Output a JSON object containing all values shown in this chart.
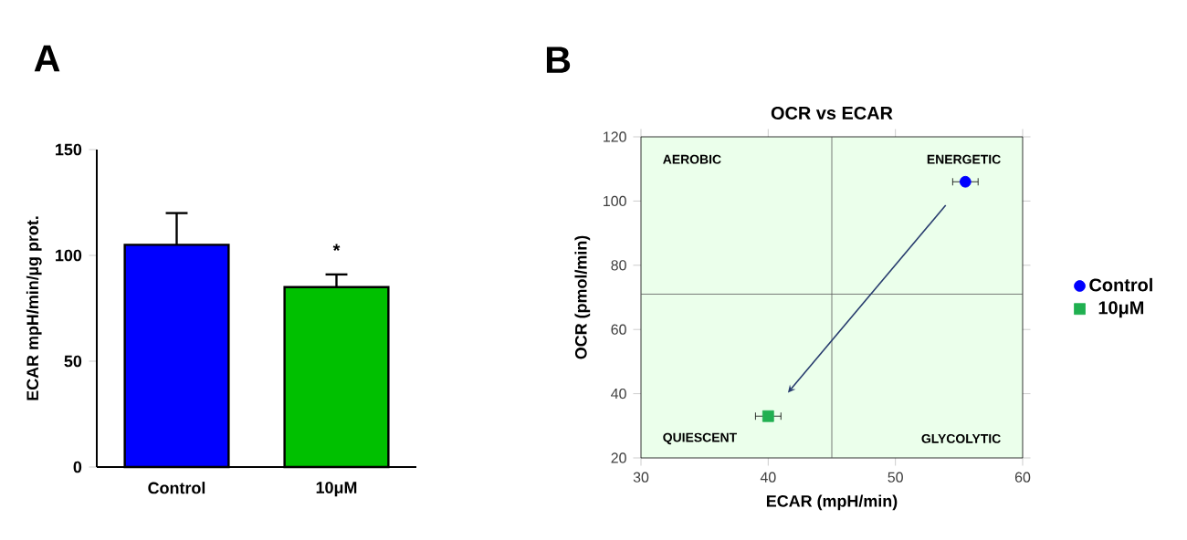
{
  "chart_data": [
    {
      "type": "bar",
      "ylabel": "ECAR mpH/min/µg prot.",
      "categories": [
        "Control",
        "10μM"
      ],
      "values": [
        105,
        85
      ],
      "colors": [
        "#0000ff",
        "#00c000"
      ],
      "errors": [
        [
          105,
          120
        ],
        [
          85,
          91
        ]
      ],
      "ylim": [
        0,
        150
      ],
      "yticks": [
        0,
        50,
        100,
        150
      ],
      "grid": false,
      "annotations": [
        "A",
        "*"
      ]
    },
    {
      "type": "scatter",
      "title": "OCR vs ECAR",
      "xlabel": "ECAR (mpH/min)",
      "ylabel": "OCR (pmol/min)",
      "series": [
        {
          "name": "Control",
          "color": "#0000ff",
          "marker": "circle",
          "x": [
            55.5
          ],
          "values": [
            106
          ],
          "xerrors": [
            1
          ]
        },
        {
          "name": "10μM",
          "color": "#20b050",
          "marker": "square",
          "x": [
            40
          ],
          "values": [
            33
          ],
          "xerrors": [
            1
          ]
        }
      ],
      "xlim": [
        30,
        60
      ],
      "xticks": [
        30,
        40,
        50,
        60
      ],
      "ylim": [
        20,
        120
      ],
      "yticks": [
        20,
        40,
        60,
        80,
        100,
        120
      ],
      "grid": false,
      "legend": "right",
      "ref_lines": [
        {
          "axis": "x",
          "value": 45
        },
        {
          "axis": "y",
          "value": 71
        }
      ],
      "annotations": [
        "B",
        "AEROBIC",
        "ENERGETIC",
        "QUIESCENT",
        "GLYCOLYTIC"
      ]
    }
  ]
}
